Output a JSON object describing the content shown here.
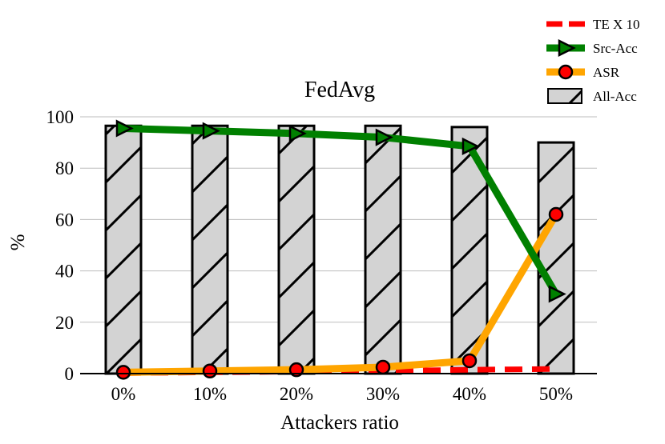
{
  "chart_data": {
    "type": "bar",
    "title": "FedAvg",
    "xlabel": "Attackers ratio",
    "ylabel": "%",
    "categories": [
      "0%",
      "10%",
      "20%",
      "30%",
      "40%",
      "50%"
    ],
    "ylim": [
      0,
      100
    ],
    "yticks": [
      0,
      20,
      40,
      60,
      80,
      100
    ],
    "grid": true,
    "legend_position": "top-right",
    "series": [
      {
        "name": "TE X 10",
        "kind": "line",
        "style": "dashed",
        "color": "#ff0000",
        "values": [
          0.2,
          0.5,
          0.8,
          1.0,
          1.5,
          1.8
        ]
      },
      {
        "name": "Src-Acc",
        "kind": "line",
        "marker": "triangle-right",
        "color": "#008000",
        "values": [
          95.5,
          94.5,
          93.5,
          92,
          88.5,
          31
        ]
      },
      {
        "name": "ASR",
        "kind": "line",
        "marker": "circle",
        "color": "#ffa500",
        "marker_color": "#ff0000",
        "values": [
          0.5,
          1,
          1.5,
          2.5,
          5,
          62
        ]
      },
      {
        "name": "All-Acc",
        "kind": "bar",
        "color": "#d3d3d3",
        "hatch": "/",
        "values": [
          96.5,
          96.5,
          96.5,
          96.5,
          96,
          90
        ]
      }
    ]
  }
}
